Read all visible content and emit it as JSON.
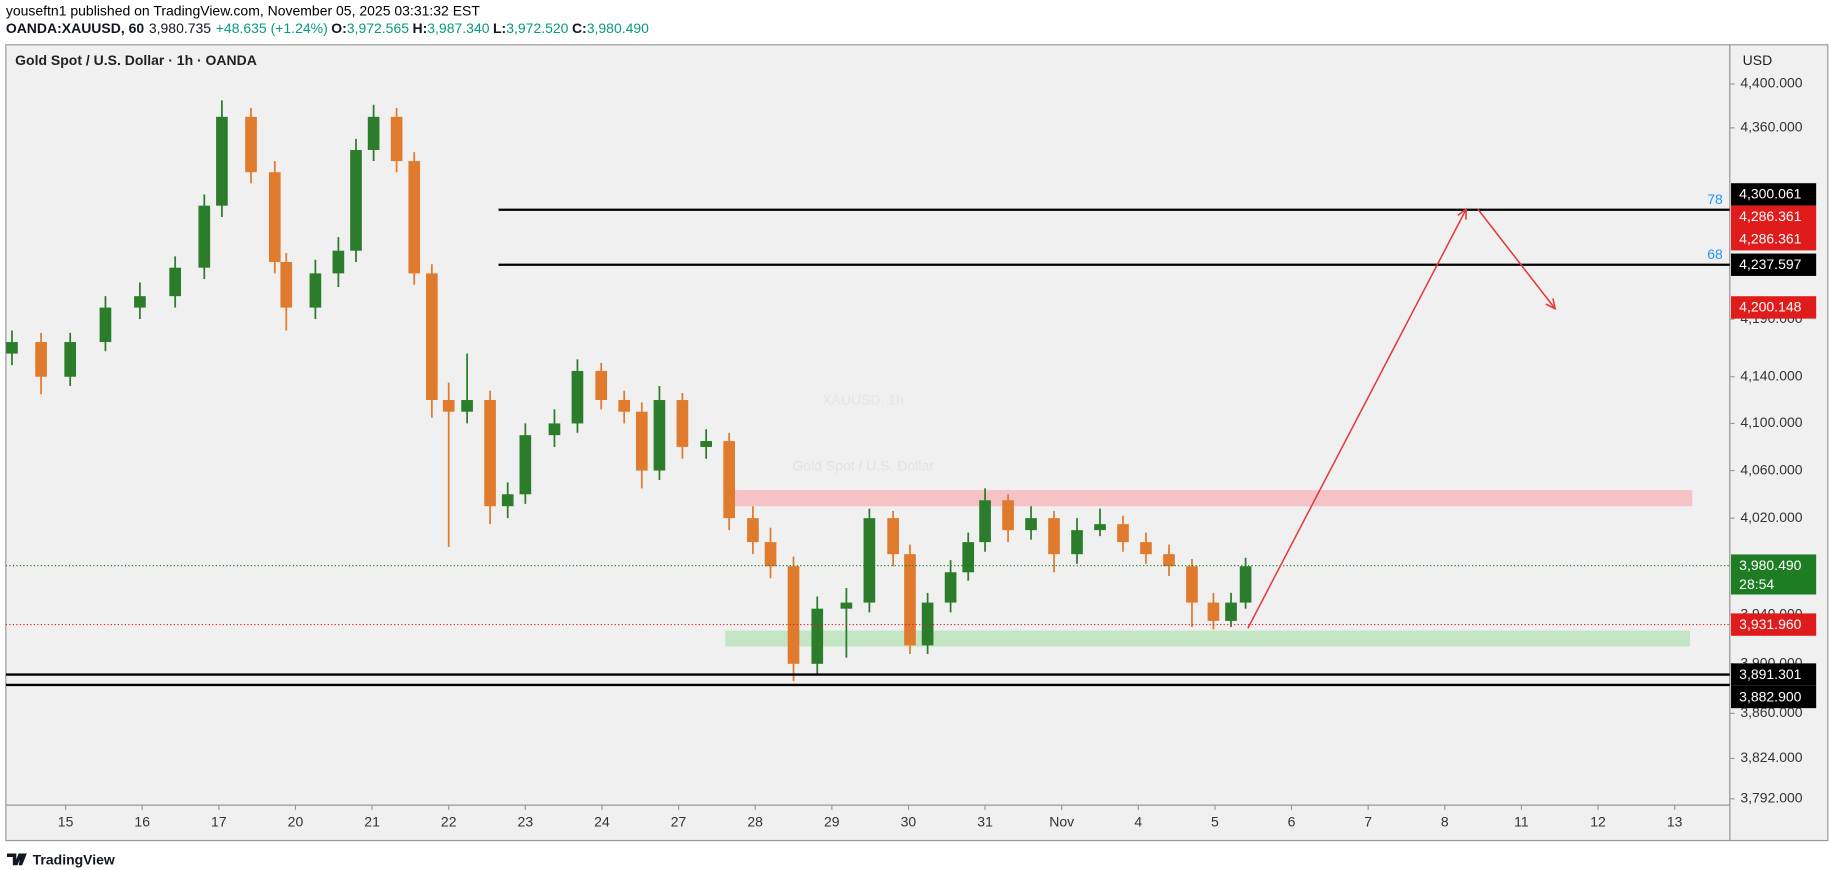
{
  "header": {
    "line1": "youseftn1 published on TradingView.com, November 05, 2025 03:31:32 EST",
    "symbol": "OANDA:XAUUSD, 60",
    "last": "3,980.735",
    "change": "+48.635 (+1.24%)",
    "ohlc": [
      {
        "k": "O:",
        "v": "3,972.565"
      },
      {
        "k": "H:",
        "v": "3,987.340"
      },
      {
        "k": "L:",
        "v": "3,972.520"
      },
      {
        "k": "C:",
        "v": "3,980.490"
      }
    ]
  },
  "footer": {
    "brand": "TradingView"
  },
  "chart_data": {
    "type": "candlestick",
    "title": "Gold Spot / U.S. Dollar · 1h · OANDA",
    "watermark": "XAUUSD, 1h",
    "watermark_sub": "Gold Spot / U.S. Dollar",
    "currency": "USD",
    "log_scale": true,
    "up_color": "#2b7d2b",
    "down_color": "#e07b2e",
    "xlim": [
      -0.78,
      21.72
    ],
    "ylim": [
      3787,
      4436
    ],
    "xticks": [
      {
        "value": 0,
        "label": "15"
      },
      {
        "value": 1,
        "label": "16"
      },
      {
        "value": 2,
        "label": "17"
      },
      {
        "value": 3,
        "label": "20"
      },
      {
        "value": 4,
        "label": "21"
      },
      {
        "value": 5,
        "label": "22"
      },
      {
        "value": 6,
        "label": "23"
      },
      {
        "value": 7,
        "label": "24"
      },
      {
        "value": 8,
        "label": "27"
      },
      {
        "value": 9,
        "label": "28"
      },
      {
        "value": 10,
        "label": "29"
      },
      {
        "value": 11,
        "label": "30"
      },
      {
        "value": 12,
        "label": "31"
      },
      {
        "value": 13,
        "label": "Nov"
      },
      {
        "value": 14,
        "label": "4"
      },
      {
        "value": 15,
        "label": "5"
      },
      {
        "value": 16,
        "label": "6"
      },
      {
        "value": 17,
        "label": "7"
      },
      {
        "value": 18,
        "label": "8"
      },
      {
        "value": 19,
        "label": "11"
      },
      {
        "value": 20,
        "label": "12"
      },
      {
        "value": 21,
        "label": "13"
      }
    ],
    "yticks": [
      {
        "value": 4400,
        "label": "4,400.000"
      },
      {
        "value": 4360,
        "label": "4,360.000"
      },
      {
        "value": 4190,
        "label": "4,190.000"
      },
      {
        "value": 4140,
        "label": "4,140.000"
      },
      {
        "value": 4100,
        "label": "4,100.000"
      },
      {
        "value": 4060,
        "label": "4,060.000"
      },
      {
        "value": 4020,
        "label": "4,020.000"
      },
      {
        "value": 3940,
        "label": "3,940.000"
      },
      {
        "value": 3900,
        "label": "3,900.000"
      },
      {
        "value": 3860,
        "label": "3,860.000"
      },
      {
        "value": 3824,
        "label": "3,824.000"
      },
      {
        "value": 3792,
        "label": "3,792.000"
      }
    ],
    "ohlc": [
      [
        -0.7,
        4160,
        4180,
        4150,
        4170
      ],
      [
        -0.32,
        4170,
        4178,
        4125,
        4140
      ],
      [
        0.06,
        4140,
        4178,
        4132,
        4170
      ],
      [
        0.52,
        4170,
        4210,
        4162,
        4200
      ],
      [
        0.97,
        4200,
        4222,
        4190,
        4210
      ],
      [
        1.43,
        4210,
        4245,
        4200,
        4235
      ],
      [
        1.81,
        4235,
        4300,
        4225,
        4290
      ],
      [
        2.04,
        4290,
        4385,
        4280,
        4370
      ],
      [
        2.42,
        4370,
        4378,
        4310,
        4320
      ],
      [
        2.73,
        4320,
        4330,
        4230,
        4240
      ],
      [
        2.88,
        4240,
        4248,
        4180,
        4200
      ],
      [
        3.26,
        4200,
        4242,
        4190,
        4230
      ],
      [
        3.56,
        4230,
        4262,
        4218,
        4250
      ],
      [
        3.79,
        4250,
        4350,
        4240,
        4340
      ],
      [
        4.02,
        4340,
        4381,
        4330,
        4370
      ],
      [
        4.32,
        4370,
        4378,
        4320,
        4330
      ],
      [
        4.55,
        4330,
        4338,
        4220,
        4230
      ],
      [
        4.78,
        4230,
        4238,
        4105,
        4120
      ],
      [
        5.0,
        4120,
        4135,
        3996,
        4110
      ],
      [
        5.24,
        4110,
        4160,
        4100,
        4120
      ],
      [
        5.54,
        4120,
        4128,
        4015,
        4030
      ],
      [
        5.77,
        4030,
        4050,
        4020,
        4040
      ],
      [
        6.0,
        4040,
        4100,
        4032,
        4090
      ],
      [
        6.38,
        4090,
        4112,
        4080,
        4100
      ],
      [
        6.68,
        4100,
        4155,
        4092,
        4145
      ],
      [
        6.99,
        4145,
        4152,
        4112,
        4120
      ],
      [
        7.29,
        4120,
        4128,
        4100,
        4110
      ],
      [
        7.52,
        4110,
        4118,
        4045,
        4060
      ],
      [
        7.75,
        4060,
        4132,
        4052,
        4120
      ],
      [
        8.05,
        4120,
        4126,
        4070,
        4080
      ],
      [
        8.36,
        4080,
        4095,
        4070,
        4085
      ],
      [
        8.66,
        4085,
        4092,
        4010,
        4020
      ],
      [
        8.97,
        4020,
        4030,
        3990,
        4000
      ],
      [
        9.2,
        4000,
        4012,
        3970,
        3980
      ],
      [
        9.5,
        3980,
        3988,
        3886,
        3900
      ],
      [
        9.81,
        3900,
        3955,
        3892,
        3945
      ],
      [
        10.19,
        3945,
        3962,
        3905,
        3950
      ],
      [
        10.49,
        3950,
        4028,
        3942,
        4020
      ],
      [
        10.8,
        4020,
        4026,
        3980,
        3990
      ],
      [
        11.02,
        3990,
        3998,
        3908,
        3915
      ],
      [
        11.25,
        3915,
        3958,
        3908,
        3950
      ],
      [
        11.55,
        3950,
        3985,
        3942,
        3975
      ],
      [
        11.78,
        3975,
        4008,
        3968,
        4000
      ],
      [
        12.0,
        4000,
        4045,
        3992,
        4035
      ],
      [
        12.3,
        4035,
        4040,
        4000,
        4010
      ],
      [
        12.6,
        4010,
        4030,
        4002,
        4020
      ],
      [
        12.9,
        4020,
        4026,
        3975,
        3990
      ],
      [
        13.2,
        3990,
        4020,
        3982,
        4010
      ],
      [
        13.5,
        4010,
        4028,
        4005,
        4015
      ],
      [
        13.8,
        4015,
        4022,
        3992,
        4000
      ],
      [
        14.1,
        4000,
        4008,
        3982,
        3990
      ],
      [
        14.4,
        3990,
        3998,
        3972,
        3980
      ],
      [
        14.7,
        3980,
        3986,
        3930,
        3950
      ],
      [
        14.98,
        3950,
        3958,
        3928,
        3935
      ],
      [
        15.21,
        3935,
        3958,
        3930,
        3950
      ],
      [
        15.4,
        3950,
        3987,
        3945,
        3980
      ]
    ],
    "zones": [
      {
        "from": 8.61,
        "to": 21.23,
        "top": 4043.5,
        "bottom": 4030,
        "color": "#f5c3c6"
      },
      {
        "from": 8.61,
        "to": 21.2,
        "top": 3927,
        "bottom": 3914,
        "color": "#c3e5c3"
      }
    ],
    "lines": [
      {
        "value": 4286.361,
        "from": 5.65,
        "label": "78"
      },
      {
        "value": 4237.597,
        "from": 5.65,
        "label": "68"
      },
      {
        "value": 3891.301,
        "from": -0.78
      },
      {
        "value": 3882.9,
        "from": -0.78
      }
    ],
    "arrows": [
      [
        15.43,
        3929,
        18.28,
        4287
      ],
      [
        18.43,
        4287,
        19.44,
        4199
      ]
    ],
    "arrow_color": "#e53935",
    "price_labels": [
      {
        "value": 4300.061,
        "label": "4,300.061",
        "color": "#000000"
      },
      {
        "value": 4286.361,
        "label": "4,286.361",
        "color": "#e01b1b"
      },
      {
        "value": 4286.361,
        "label": "4,286.361",
        "color": "#e01b1b"
      },
      {
        "value": 4237.597,
        "label": "4,237.597",
        "color": "#000000"
      },
      {
        "value": 4200.148,
        "label": "4,200.148",
        "color": "#e01b1b"
      },
      {
        "value": 3980.49,
        "label": "3,980.490",
        "sub": "28:54",
        "color": "#1e7d22",
        "dotted": true
      },
      {
        "value": 3931.96,
        "label": "3,931.960",
        "color": "#e01b1b",
        "dotted": true
      },
      {
        "value": 3891.301,
        "label": "3,891.301",
        "color": "#000000"
      },
      {
        "value": 3882.9,
        "label": "3,882.900",
        "color": "#000000"
      }
    ]
  }
}
